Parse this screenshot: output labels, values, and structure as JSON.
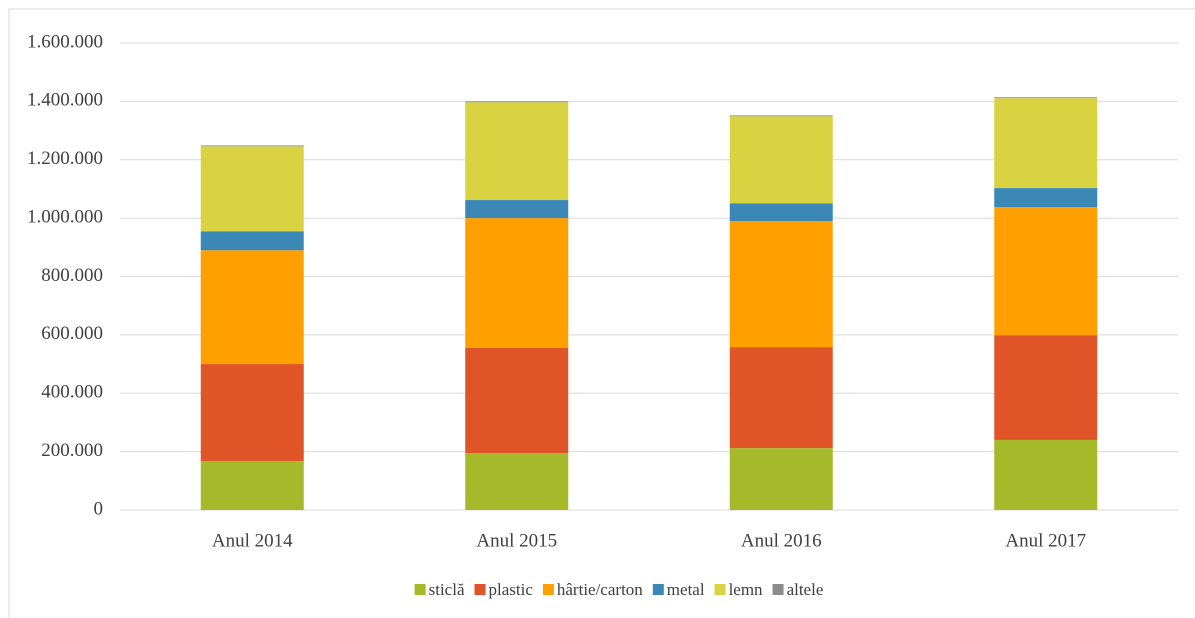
{
  "chart_data": {
    "type": "stacked_bar",
    "categories": [
      "Anul 2014",
      "Anul 2015",
      "Anul 2016",
      "Anul 2017"
    ],
    "series": [
      {
        "name": "sticlă",
        "color": "#a5b92a",
        "values": [
          168000,
          195000,
          212000,
          240000
        ]
      },
      {
        "name": "plastic",
        "color": "#e05527",
        "values": [
          332000,
          360000,
          346000,
          359000
        ]
      },
      {
        "name": "hârtie/carton",
        "color": "#ffa000",
        "values": [
          390000,
          445000,
          432000,
          439000
        ]
      },
      {
        "name": "metal",
        "color": "#3b87b6",
        "values": [
          65000,
          62000,
          61000,
          65000
        ]
      },
      {
        "name": "lemn",
        "color": "#d9d342",
        "values": [
          291000,
          335000,
          298000,
          308000
        ]
      },
      {
        "name": "altele",
        "color": "#8c8c8c",
        "values": [
          3000,
          3000,
          3000,
          3000
        ]
      }
    ],
    "ylim": [
      0,
      1600000
    ],
    "yticks": [
      0,
      {
        "value": 200000,
        "label": "200.000"
      },
      {
        "value": 400000,
        "label": "400.000"
      },
      {
        "value": 600000,
        "label": "600.000"
      },
      {
        "value": 800000,
        "label": "800.000"
      },
      {
        "value": 1000000,
        "label": "1.000.000"
      },
      {
        "value": 1200000,
        "label": "1.200.000"
      },
      {
        "value": 1400000,
        "label": "1.400.000"
      },
      {
        "value": 1600000,
        "label": "1.600.000"
      }
    ],
    "grid": true,
    "legend": "bottom"
  }
}
